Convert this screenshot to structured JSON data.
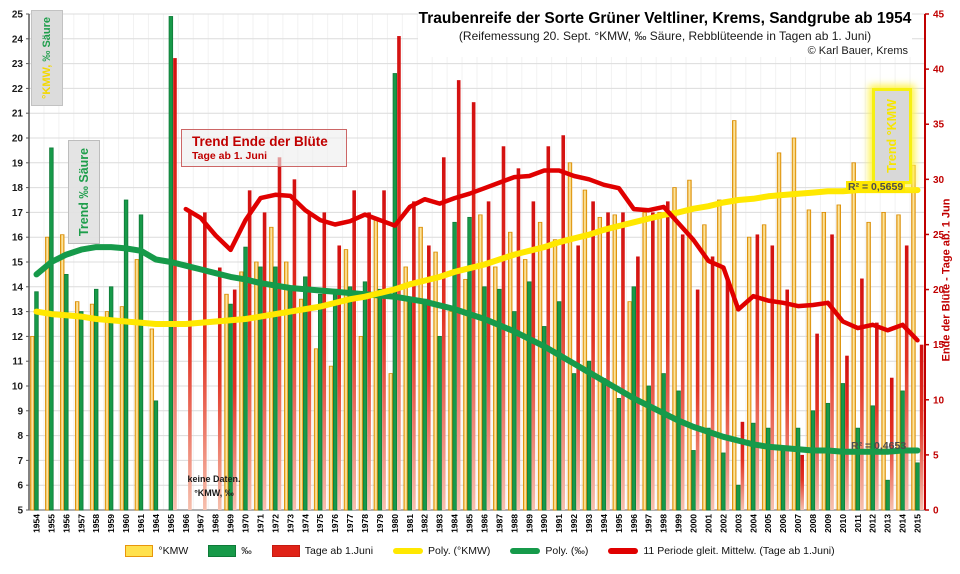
{
  "chart_data": {
    "type": "bar",
    "title": "Traubenreife der Sorte Grüner Veltliner, Krems, Sandgrube ab 1954",
    "subtitle": "(Reifemessung 20. Sept. °KMW, ‰ Säure, Rebblüteende in Tagen ab 1. Juni)",
    "credit": "© Karl Bauer, Krems",
    "categories": [
      "1954",
      "1955",
      "1956",
      "1957",
      "1958",
      "1959",
      "1960",
      "1961",
      "1964",
      "1965",
      "1966",
      "1967",
      "1968",
      "1969",
      "1970",
      "1971",
      "1972",
      "1973",
      "1974",
      "1975",
      "1976",
      "1977",
      "1978",
      "1979",
      "1980",
      "1981",
      "1982",
      "1983",
      "1984",
      "1985",
      "1986",
      "1987",
      "1988",
      "1989",
      "1990",
      "1991",
      "1992",
      "1993",
      "1994",
      "1995",
      "1996",
      "1997",
      "1998",
      "1999",
      "2000",
      "2001",
      "2002",
      "2003",
      "2004",
      "2005",
      "2006",
      "2007",
      "2008",
      "2009",
      "2010",
      "2011",
      "2012",
      "2013",
      "2014",
      "2015"
    ],
    "axes": {
      "left": {
        "label": "°KMW, ‰ Säure",
        "min": 5,
        "max": 25,
        "step": 1
      },
      "right": {
        "label": "Ende der Blüte - Tage ab. 1 Jun",
        "min": 0,
        "max": 45,
        "step": 5
      }
    },
    "series": [
      {
        "name": "°KMW",
        "type": "bar",
        "axis": "left",
        "color": "#E8960C",
        "values": [
          12.0,
          16.0,
          16.1,
          13.4,
          13.3,
          13.0,
          13.2,
          15.1,
          12.3,
          null,
          null,
          null,
          null,
          13.7,
          14.6,
          15.0,
          16.4,
          15.0,
          13.5,
          11.5,
          10.8,
          15.5,
          12.0,
          16.7,
          10.5,
          14.8,
          16.4,
          15.4,
          13.0,
          14.3,
          16.9,
          14.8,
          16.2,
          15.1,
          16.6,
          15.9,
          19.0,
          17.9,
          16.8,
          16.9,
          13.4,
          17.0,
          17.0,
          18.0,
          18.3,
          16.5,
          17.5,
          20.7,
          16.0,
          16.5,
          19.4,
          20.0,
          17.1,
          17.0,
          17.3,
          19.0,
          16.6,
          17.0,
          16.9,
          18.9
        ]
      },
      {
        "name": "‰",
        "type": "bar",
        "axis": "left",
        "color": "#179A49",
        "values": [
          13.8,
          19.6,
          14.5,
          13.0,
          13.9,
          14.0,
          17.5,
          16.9,
          9.4,
          24.9,
          null,
          null,
          null,
          13.3,
          15.6,
          14.8,
          14.8,
          14.0,
          14.4,
          13.7,
          13.9,
          14.0,
          14.2,
          13.9,
          22.6,
          13.5,
          13.5,
          12.0,
          16.6,
          16.8,
          14.0,
          13.9,
          13.0,
          14.2,
          12.4,
          13.4,
          10.5,
          11.0,
          10.3,
          9.5,
          14.0,
          10.0,
          10.5,
          9.8,
          7.4,
          8.3,
          7.3,
          6.0,
          8.5,
          8.3,
          7.4,
          8.3,
          9.0,
          9.3,
          10.1,
          8.3,
          9.2,
          6.2,
          9.8,
          6.9
        ]
      },
      {
        "name": "Tage ab 1.Juni",
        "type": "bar",
        "axis": "right",
        "color": "#DE1B12",
        "values": [
          null,
          null,
          null,
          null,
          null,
          null,
          null,
          null,
          null,
          41,
          27,
          27,
          22,
          20,
          29,
          27,
          32,
          30,
          27,
          27,
          24,
          29,
          27,
          29,
          43,
          28,
          24,
          32,
          39,
          37,
          28,
          33,
          31,
          28,
          33,
          34,
          24,
          28,
          27,
          27,
          23,
          27,
          28,
          25,
          20,
          23,
          21,
          8,
          25,
          24,
          20,
          5,
          16,
          25,
          14,
          21,
          17,
          12,
          24,
          15
        ]
      },
      {
        "name": "Poly. (°KMW)",
        "type": "line",
        "axis": "left",
        "color": "#FFE800",
        "width": 6,
        "values": [
          13.0,
          12.9,
          12.85,
          12.8,
          12.7,
          12.65,
          12.6,
          12.55,
          12.5,
          12.5,
          12.5,
          12.55,
          12.6,
          12.65,
          12.7,
          12.8,
          12.9,
          13.0,
          13.1,
          13.2,
          13.35,
          13.5,
          13.6,
          13.75,
          13.9,
          14.1,
          14.25,
          14.4,
          14.6,
          14.75,
          14.9,
          15.1,
          15.3,
          15.45,
          15.6,
          15.8,
          15.95,
          16.1,
          16.3,
          16.45,
          16.6,
          16.75,
          16.9,
          17.0,
          17.15,
          17.25,
          17.4,
          17.5,
          17.55,
          17.65,
          17.7,
          17.75,
          17.8,
          17.85,
          17.85,
          17.9,
          17.9,
          17.9,
          17.9,
          17.9
        ]
      },
      {
        "name": "Poly. (‰)",
        "type": "line",
        "axis": "left",
        "color": "#169A4A",
        "width": 6,
        "values": [
          14.5,
          15.0,
          15.3,
          15.5,
          15.6,
          15.6,
          15.55,
          15.45,
          15.1,
          15.0,
          14.85,
          14.7,
          14.55,
          14.4,
          14.3,
          14.15,
          14.05,
          13.95,
          13.9,
          13.85,
          13.8,
          13.75,
          13.7,
          13.65,
          13.6,
          13.5,
          13.4,
          13.25,
          13.1,
          12.9,
          12.7,
          12.45,
          12.2,
          11.9,
          11.6,
          11.25,
          10.9,
          10.55,
          10.2,
          9.85,
          9.5,
          9.2,
          8.9,
          8.6,
          8.35,
          8.15,
          7.95,
          7.8,
          7.65,
          7.55,
          7.5,
          7.45,
          7.4,
          7.4,
          7.35,
          7.35,
          7.35,
          7.35,
          7.4,
          7.4
        ]
      },
      {
        "name": "11 Periode gleit. Mittelw. (Tage ab 1.Juni)",
        "type": "line",
        "axis": "right",
        "color": "#E00000",
        "width": 4.5,
        "values": [
          null,
          null,
          null,
          null,
          null,
          null,
          null,
          null,
          null,
          null,
          27.3,
          26.5,
          24.9,
          23.6,
          26.3,
          28.3,
          28.6,
          28.5,
          27.2,
          26.3,
          25.9,
          26.2,
          26.8,
          26.3,
          25.8,
          27.5,
          28.2,
          27.8,
          28.3,
          28.7,
          29.2,
          29.7,
          30.2,
          30.3,
          30.8,
          30.8,
          30.3,
          30.0,
          29.5,
          29.2,
          27.3,
          27.2,
          27.5,
          26.0,
          24.5,
          22.6,
          22.0,
          18.2,
          19.4,
          19.0,
          18.8,
          18.5,
          18.6,
          18.8,
          17.1,
          16.5,
          16.8,
          16.3,
          16.8,
          15.4
        ]
      }
    ],
    "annotations": {
      "axis_left_part1": "°KMW,",
      "axis_left_part2": " ‰ Säure",
      "trend_saure": "Trend ‰ Säure",
      "trend_kmw": "Trend °KMW",
      "trend_bluete_title": "Trend Ende der Blüte",
      "trend_bluete_sub": "Tage ab 1. Juni",
      "r2_kmw": "R² = 0,5659",
      "r2_saure": "R² = 0,4653",
      "keine_daten_1": "keine Daten.",
      "keine_daten_2": "°KMW, ‰"
    },
    "legend": [
      {
        "label": "°KMW",
        "swatch": "bar",
        "fill": "#FFE14D",
        "border": "#E8960C"
      },
      {
        "label": "‰",
        "swatch": "bar",
        "fill": "#179A49",
        "border": "#0E7A38"
      },
      {
        "label": "Tage ab 1.Juni",
        "swatch": "bar",
        "fill": "#E02318",
        "border": "#C51A10"
      },
      {
        "label": "Poly. (°KMW)",
        "swatch": "line",
        "fill": "#FFE800"
      },
      {
        "label": "Poly. (‰)",
        "swatch": "line",
        "fill": "#169A4A"
      },
      {
        "label": "11 Periode gleit. Mittelw. (Tage ab 1.Juni)",
        "swatch": "line",
        "fill": "#E00000"
      }
    ]
  }
}
